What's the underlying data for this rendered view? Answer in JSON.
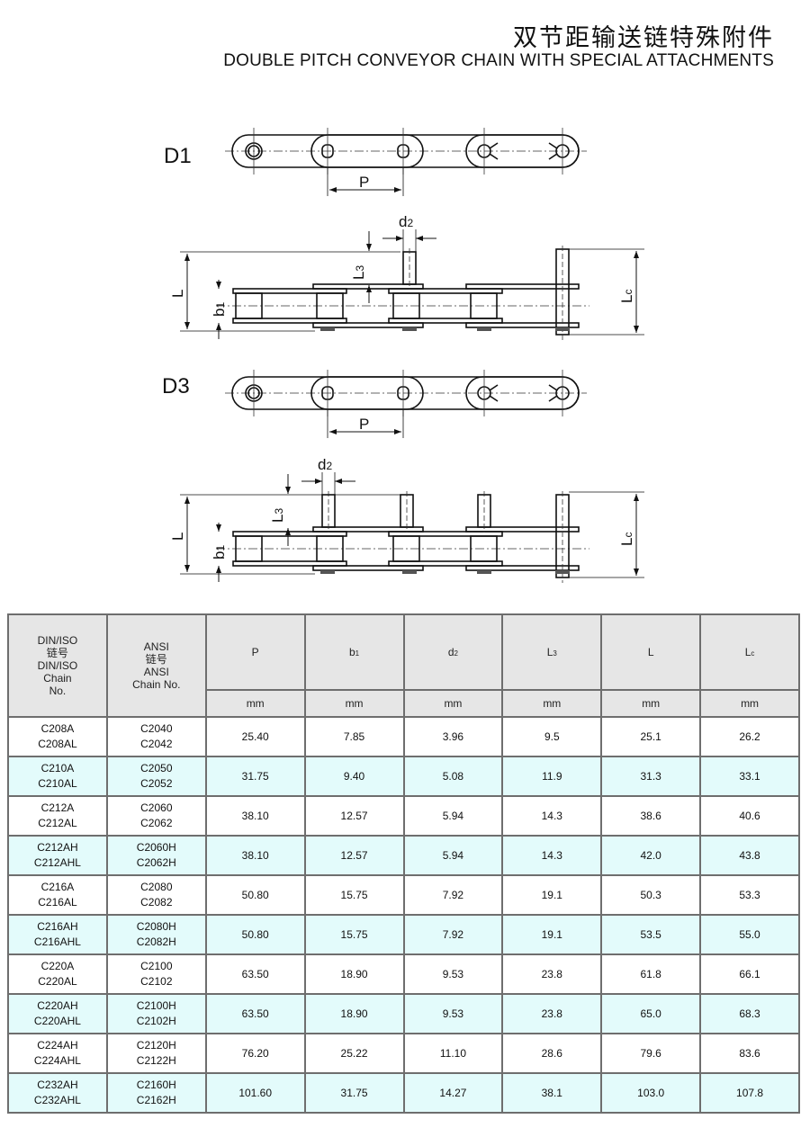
{
  "header": {
    "title_cn": "双节距输送链特殊附件",
    "title_en": "DOUBLE PITCH CONVEYOR CHAIN WITH SPECIAL ATTACHMENTS"
  },
  "drawings": {
    "d1_label": "D1",
    "d3_label": "D3",
    "pitch": "P",
    "d2": {
      "base": "d",
      "sub": "2"
    },
    "L": "L",
    "L3": {
      "base": "L",
      "sub": "3"
    },
    "b1": {
      "base": "b",
      "sub": "1"
    },
    "Lc": {
      "base": "L",
      "sub": "c"
    }
  },
  "table": {
    "col_din": "DIN/ISO\n链号\nDIN/ISO\nChain\nNo.",
    "col_ansi": "ANSI\n链号\nANSI\nChain No.",
    "cols": [
      {
        "base": "P",
        "sub": ""
      },
      {
        "base": "b",
        "sub": "1"
      },
      {
        "base": "d",
        "sub": "2"
      },
      {
        "base": "L",
        "sub": "3"
      },
      {
        "base": "L",
        "sub": ""
      },
      {
        "base": "L",
        "sub": "c"
      }
    ],
    "unit": "mm",
    "row_colors": [
      "#ffffff",
      "#e3fbfb"
    ],
    "rows": [
      {
        "din": "C208A\nC208AL",
        "ansi": "C2040\nC2042",
        "values": [
          "25.40",
          "7.85",
          "3.96",
          "9.5",
          "25.1",
          "26.2"
        ]
      },
      {
        "din": "C210A\nC210AL",
        "ansi": "C2050\nC2052",
        "values": [
          "31.75",
          "9.40",
          "5.08",
          "11.9",
          "31.3",
          "33.1"
        ]
      },
      {
        "din": "C212A\nC212AL",
        "ansi": "C2060\nC2062",
        "values": [
          "38.10",
          "12.57",
          "5.94",
          "14.3",
          "38.6",
          "40.6"
        ]
      },
      {
        "din": "C212AH\nC212AHL",
        "ansi": "C2060H\nC2062H",
        "values": [
          "38.10",
          "12.57",
          "5.94",
          "14.3",
          "42.0",
          "43.8"
        ]
      },
      {
        "din": "C216A\nC216AL",
        "ansi": "C2080\nC2082",
        "values": [
          "50.80",
          "15.75",
          "7.92",
          "19.1",
          "50.3",
          "53.3"
        ]
      },
      {
        "din": "C216AH\nC216AHL",
        "ansi": "C2080H\nC2082H",
        "values": [
          "50.80",
          "15.75",
          "7.92",
          "19.1",
          "53.5",
          "55.0"
        ]
      },
      {
        "din": "C220A\nC220AL",
        "ansi": "C2100\nC2102",
        "values": [
          "63.50",
          "18.90",
          "9.53",
          "23.8",
          "61.8",
          "66.1"
        ]
      },
      {
        "din": "C220AH\nC220AHL",
        "ansi": "C2100H\nC2102H",
        "values": [
          "63.50",
          "18.90",
          "9.53",
          "23.8",
          "65.0",
          "68.3"
        ]
      },
      {
        "din": "C224AH\nC224AHL",
        "ansi": "C2120H\nC2122H",
        "values": [
          "76.20",
          "25.22",
          "11.10",
          "28.6",
          "79.6",
          "83.6"
        ]
      },
      {
        "din": "C232AH\nC232AHL",
        "ansi": "C2160H\nC2162H",
        "values": [
          "101.60",
          "31.75",
          "14.27",
          "38.1",
          "103.0",
          "107.8"
        ]
      }
    ]
  }
}
